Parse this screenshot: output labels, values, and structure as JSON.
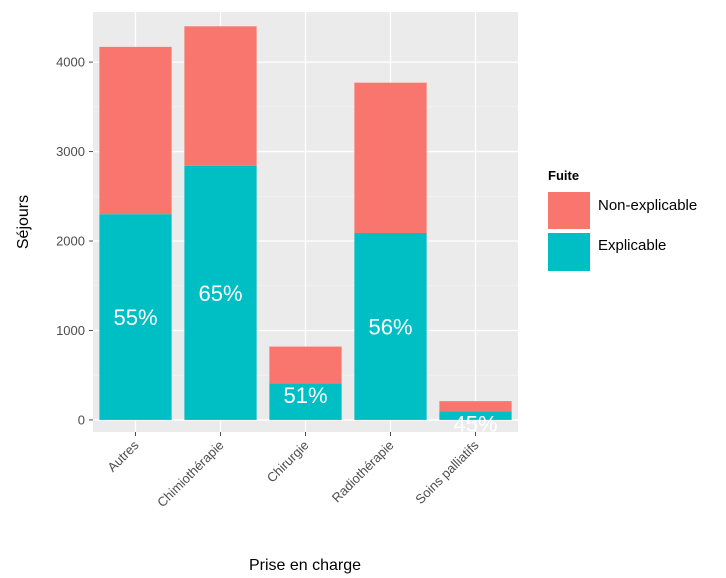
{
  "chart_data": {
    "type": "bar",
    "stacked": true,
    "xlabel": "Prise en charge",
    "ylabel": "Séjours",
    "ylim": [
      -135,
      4560
    ],
    "yticks": [
      0,
      1000,
      2000,
      3000,
      4000
    ],
    "categories": [
      "Autres",
      "Chimiothérapie",
      "Chirurgie",
      "Radiothérapie",
      "Soins palliatifs"
    ],
    "series": [
      {
        "name": "Explicable",
        "color": "#00bfc4",
        "values": [
          2300,
          2840,
          410,
          2090,
          95
        ]
      },
      {
        "name": "Non-explicable",
        "color": "#f8766d",
        "values": [
          1870,
          1560,
          410,
          1680,
          115
        ]
      }
    ],
    "bar_labels": [
      "55%",
      "65%",
      "51%",
      "56%",
      "45%"
    ],
    "legend": {
      "title": "Fuite",
      "position": "right",
      "entries": [
        {
          "label": "Non-explicable",
          "color": "#f8766d"
        },
        {
          "label": "Explicable",
          "color": "#00bfc4"
        }
      ]
    },
    "grid": true,
    "panel_background": "#ebebeb"
  }
}
